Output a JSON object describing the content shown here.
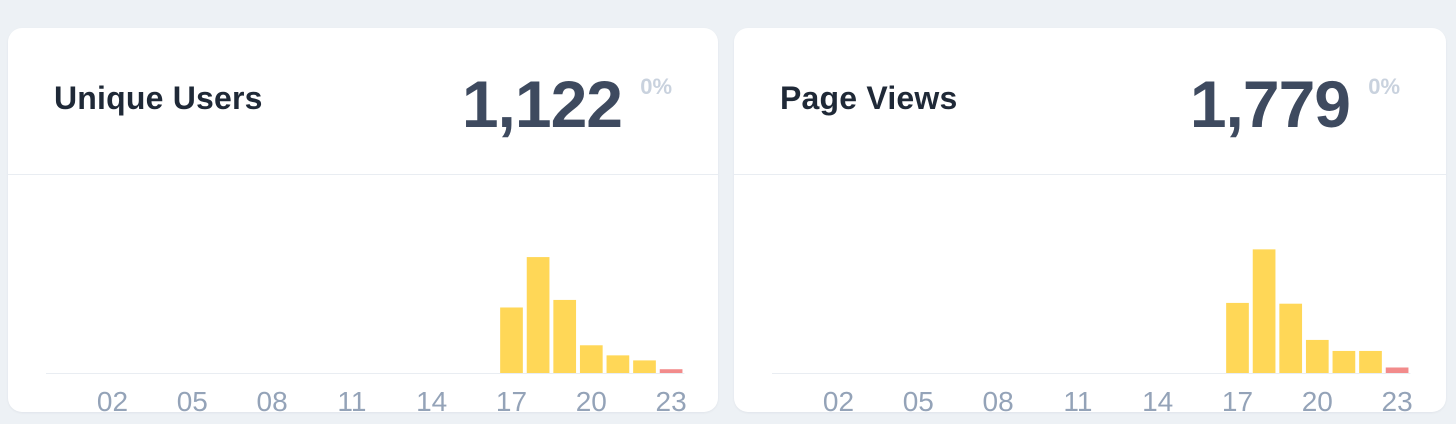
{
  "cards": [
    {
      "title": "Unique Users",
      "value": "1,122",
      "change": "0%",
      "chart_data": {
        "type": "bar",
        "categories": [
          "00",
          "01",
          "02",
          "03",
          "04",
          "05",
          "06",
          "07",
          "08",
          "09",
          "10",
          "11",
          "12",
          "13",
          "14",
          "15",
          "16",
          "17",
          "18",
          "19",
          "20",
          "21",
          "22",
          "23"
        ],
        "x_tick_labels": [
          "02",
          "05",
          "08",
          "11",
          "14",
          "17",
          "20",
          "23"
        ],
        "values": [
          0,
          0,
          0,
          0,
          0,
          0,
          0,
          0,
          0,
          0,
          0,
          0,
          0,
          0,
          0,
          0,
          0,
          52,
          92,
          58,
          22,
          14,
          10,
          3
        ],
        "bar_colors": [
          "#ffd757",
          "#ffd757",
          "#ffd757",
          "#ffd757",
          "#ffd757",
          "#ffd757",
          "#ffd757",
          "#ffd757",
          "#ffd757",
          "#ffd757",
          "#ffd757",
          "#ffd757",
          "#ffd757",
          "#ffd757",
          "#ffd757",
          "#ffd757",
          "#ffd757",
          "#ffd757",
          "#ffd757",
          "#ffd757",
          "#ffd757",
          "#ffd757",
          "#ffd757",
          "#f28b8b"
        ],
        "ylim": [
          0,
          100
        ],
        "grid": false
      }
    },
    {
      "title": "Page Views",
      "value": "1,779",
      "change": "0%",
      "chart_data": {
        "type": "bar",
        "categories": [
          "00",
          "01",
          "02",
          "03",
          "04",
          "05",
          "06",
          "07",
          "08",
          "09",
          "10",
          "11",
          "12",
          "13",
          "14",
          "15",
          "16",
          "17",
          "18",
          "19",
          "20",
          "21",
          "22",
          "23"
        ],
        "x_tick_labels": [
          "02",
          "05",
          "08",
          "11",
          "14",
          "17",
          "20",
          "23"
        ],
        "values": [
          0,
          0,
          0,
          0,
          0,
          0,
          0,
          0,
          0,
          0,
          0,
          0,
          0,
          0,
          0,
          0,
          0,
          89,
          157,
          88,
          42,
          28,
          28,
          7
        ],
        "bar_colors": [
          "#ffd757",
          "#ffd757",
          "#ffd757",
          "#ffd757",
          "#ffd757",
          "#ffd757",
          "#ffd757",
          "#ffd757",
          "#ffd757",
          "#ffd757",
          "#ffd757",
          "#ffd757",
          "#ffd757",
          "#ffd757",
          "#ffd757",
          "#ffd757",
          "#ffd757",
          "#ffd757",
          "#ffd757",
          "#ffd757",
          "#ffd757",
          "#ffd757",
          "#ffd757",
          "#f28b8b"
        ],
        "ylim": [
          0,
          160
        ],
        "grid": false
      }
    }
  ]
}
